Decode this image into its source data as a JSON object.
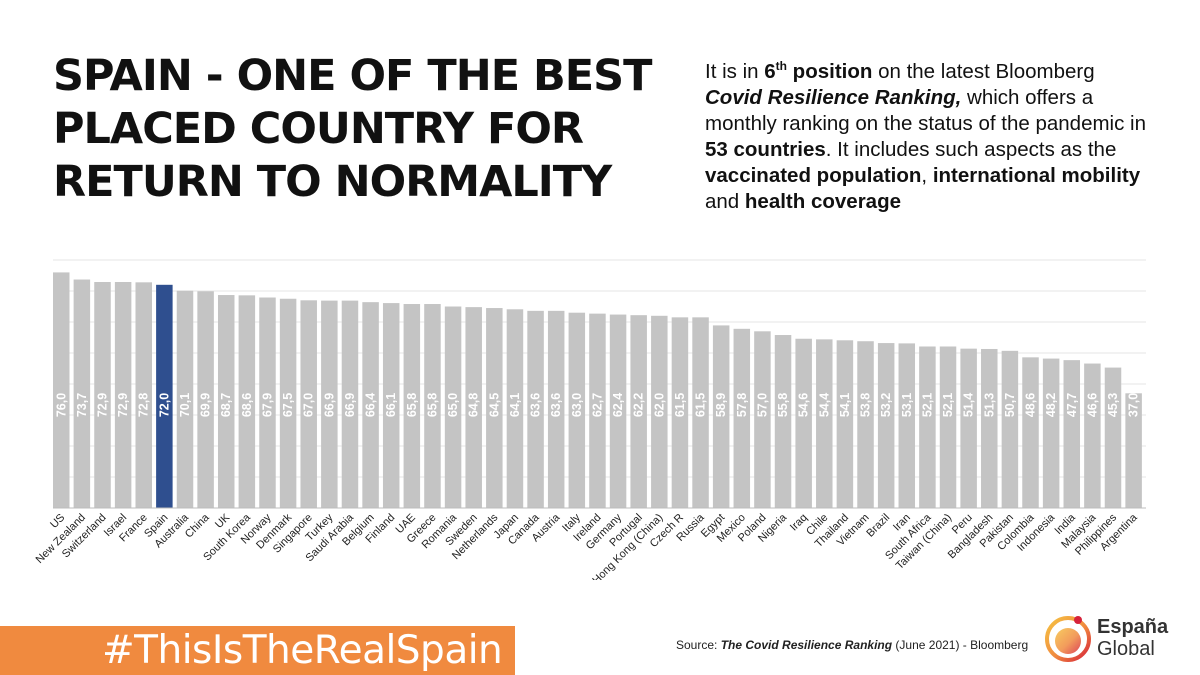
{
  "headline": {
    "line1": "SPAIN - ONE OF THE BEST",
    "line2": "PLACED COUNTRY FOR",
    "line3": "RETURN TO NORMALITY"
  },
  "blurb": {
    "t1": "It is in ",
    "pos_num": "6",
    "pos_sup": "th",
    "pos_word": " position",
    "t2": " on the latest Bloomberg ",
    "ranking_name": "Covid Resilience Ranking,",
    "t3": " which offers a monthly ranking on the status of the pandemic in ",
    "countries": "53 countries",
    "t4": ". It includes such aspects as the ",
    "vacc": "vaccinated population",
    "t5": ", ",
    "mobility": "international mobility",
    "t6": " and ",
    "health": "health coverage"
  },
  "hashtag": "#ThisIsTheRealSpain",
  "source": {
    "prefix": "Source: ",
    "title": "The Covid Resilience Ranking",
    "suffix": " (June 2021) - Bloomberg"
  },
  "logo": {
    "line1": "España",
    "line2": "Global"
  },
  "colors": {
    "bar": "#c4c4c4",
    "highlight": "#2f4f8f",
    "accent": "#f08a3f",
    "value_label": "#ffffff"
  },
  "chart_data": {
    "type": "bar",
    "categories": [
      "US",
      "New Zealand",
      "Switzerland",
      "Israel",
      "France",
      "Spain",
      "Australia",
      "China",
      "UK",
      "South Korea",
      "Norway",
      "Denmark",
      "Singapore",
      "Turkey",
      "Saudi Arabia",
      "Belgium",
      "Finland",
      "UAE",
      "Greece",
      "Romania",
      "Sweden",
      "Netherlands",
      "Japan",
      "Canada",
      "Austria",
      "Italy",
      "Ireland",
      "Germany",
      "Portugal",
      "Hong Kong (China)",
      "Czech R",
      "Russia",
      "Egypt",
      "Mexico",
      "Poland",
      "Nigeria",
      "Iraq",
      "Chile",
      "Thailand",
      "Vietnam",
      "Brazil",
      "Iran",
      "South Africa",
      "Taiwan (China)",
      "Peru",
      "Bangladesh",
      "Pakistan",
      "Colombia",
      "Indonesia",
      "India",
      "Malaysia",
      "Philippines",
      "Argentina"
    ],
    "values": [
      76.0,
      73.7,
      72.9,
      72.9,
      72.8,
      72.0,
      70.1,
      69.9,
      68.7,
      68.6,
      67.9,
      67.5,
      67.0,
      66.9,
      66.9,
      66.4,
      66.1,
      65.8,
      65.8,
      65.0,
      64.8,
      64.5,
      64.1,
      63.6,
      63.6,
      63.0,
      62.7,
      62.4,
      62.2,
      62.0,
      61.5,
      61.5,
      58.9,
      57.8,
      57.0,
      55.8,
      54.6,
      54.4,
      54.1,
      53.8,
      53.2,
      53.1,
      52.1,
      52.1,
      51.4,
      51.3,
      50.7,
      48.6,
      48.2,
      47.7,
      46.6,
      45.3,
      37.0
    ],
    "value_labels": [
      "76,0",
      "73,7",
      "72,9",
      "72,9",
      "72,8",
      "72,0",
      "70,1",
      "69,9",
      "68,7",
      "68,6",
      "67,9",
      "67,5",
      "67,0",
      "66,9",
      "66,9",
      "66,4",
      "66,1",
      "65,8",
      "65,8",
      "65,0",
      "64,8",
      "64,5",
      "64,1",
      "63,6",
      "63,6",
      "63,0",
      "62,7",
      "62,4",
      "62,2",
      "62,0",
      "61,5",
      "61,5",
      "58,9",
      "57,8",
      "57,0",
      "55,8",
      "54,6",
      "54,4",
      "54,1",
      "53,8",
      "53,2",
      "53,1",
      "52,1",
      "52,1",
      "51,4",
      "51,3",
      "50,7",
      "48,6",
      "48,2",
      "47,7",
      "46,6",
      "45,3",
      "37,0"
    ],
    "highlight": "Spain",
    "ylim": [
      0,
      80
    ],
    "grid": true,
    "title": "",
    "xlabel": "",
    "ylabel": ""
  }
}
